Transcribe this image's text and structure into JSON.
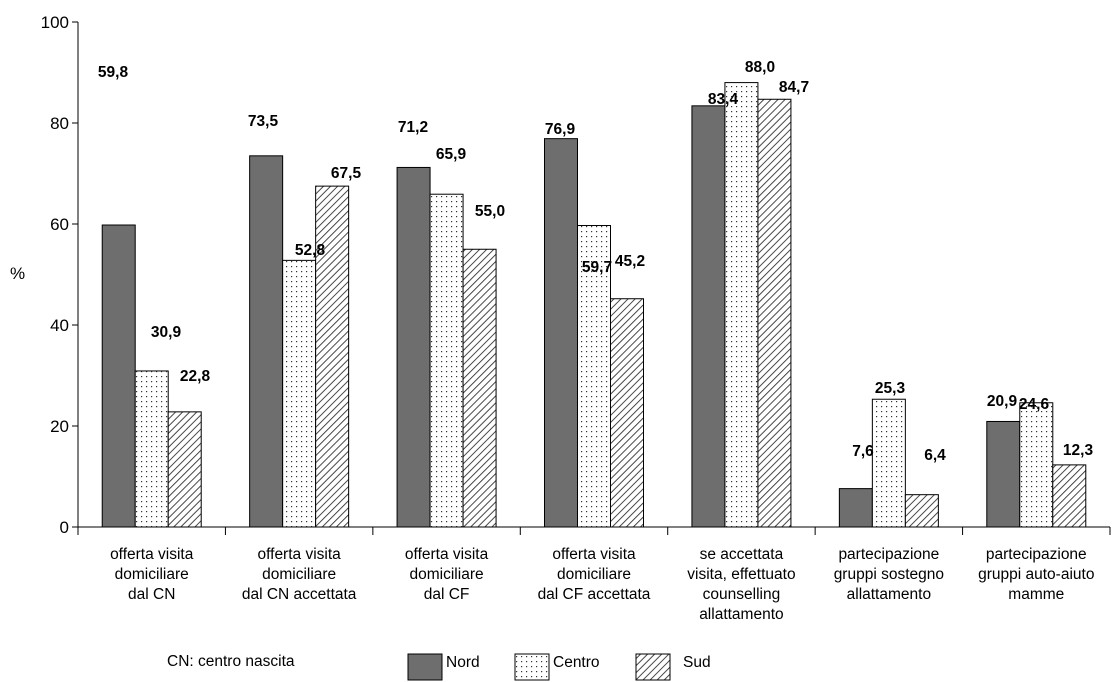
{
  "chart_data": {
    "type": "bar",
    "ylabel": "%",
    "ylim": [
      0,
      100
    ],
    "yticks": [
      0,
      20,
      40,
      60,
      80,
      100
    ],
    "grid": false,
    "legend_position": "bottom",
    "categories": [
      [
        "offerta visita",
        "domiciliare",
        "dal CN"
      ],
      [
        "offerta visita",
        "domiciliare",
        "dal CN accettata"
      ],
      [
        "offerta visita",
        "domiciliare",
        "dal CF"
      ],
      [
        "offerta visita",
        "domiciliare",
        "dal CF accettata"
      ],
      [
        "se accettata",
        "visita, effettuato",
        "counselling",
        "allattamento"
      ],
      [
        "partecipazione",
        "gruppi sostegno",
        "allattamento"
      ],
      [
        "partecipazione",
        "gruppi auto-aiuto",
        "mamme"
      ]
    ],
    "series": [
      {
        "name": "Nord",
        "fill": "dark-gray",
        "color": "#6e6e6e",
        "values": [
          59.8,
          73.5,
          71.2,
          76.9,
          83.4,
          7.6,
          20.9
        ],
        "labels": [
          "59,8",
          "73,5",
          "71,2",
          "76,9",
          "83,4",
          "7,6",
          "20,9"
        ]
      },
      {
        "name": "Centro",
        "fill": "dotted",
        "color": "#ffffff",
        "values": [
          30.9,
          52.8,
          65.9,
          59.7,
          88.0,
          25.3,
          24.6
        ],
        "labels": [
          "30,9",
          "52,8",
          "65,9",
          "59,7",
          "88,0",
          "25,3",
          "24,6"
        ]
      },
      {
        "name": "Sud",
        "fill": "diagonal-hatch",
        "color": "#ffffff",
        "values": [
          22.8,
          67.5,
          55.0,
          45.2,
          84.7,
          6.4,
          12.3
        ],
        "labels": [
          "22,8",
          "67,5",
          "55,0",
          "45,2",
          "84,7",
          "6,4",
          "12,3"
        ]
      }
    ],
    "note": "CN: centro nascita"
  }
}
